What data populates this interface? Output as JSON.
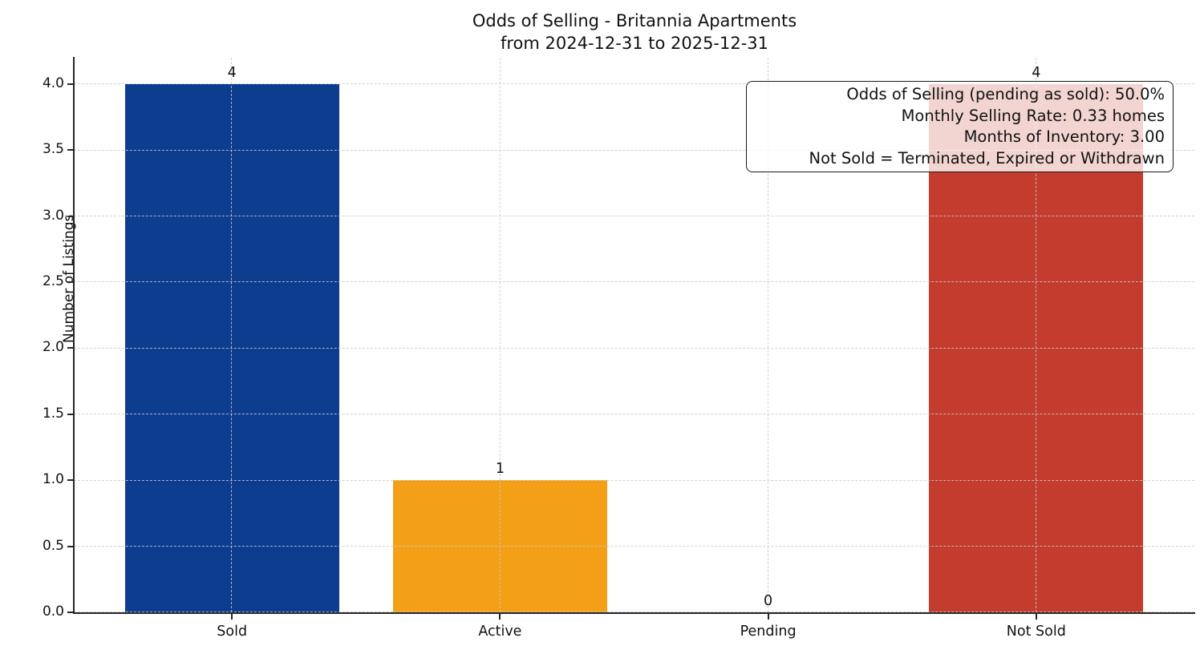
{
  "chart_data": {
    "type": "bar",
    "title": "Odds of Selling - Britannia Apartments",
    "subtitle": "from 2024-12-31 to 2025-12-31",
    "categories": [
      "Sold",
      "Active",
      "Pending",
      "Not Sold"
    ],
    "values": [
      4,
      1,
      0,
      4
    ],
    "bar_colors": [
      "#0d3d8f",
      "#f4a017",
      null,
      "#c43c2d"
    ],
    "value_labels": [
      "4",
      "1",
      "0",
      "4"
    ],
    "xlabel": "",
    "ylabel": "Number of Listings",
    "ylim": [
      0,
      4.2
    ],
    "yticks": [
      0,
      0.5,
      1,
      1.5,
      2,
      2.5,
      3,
      3.5,
      4
    ],
    "grid": "dashed both axes",
    "legend": "none",
    "annotation": {
      "lines": [
        "Odds of Selling (pending as sold): 50.0%",
        "Monthly Selling Rate: 0.33 homes",
        "Months of Inventory: 3.00",
        "Not Sold = Terminated, Expired or Withdrawn"
      ]
    }
  }
}
